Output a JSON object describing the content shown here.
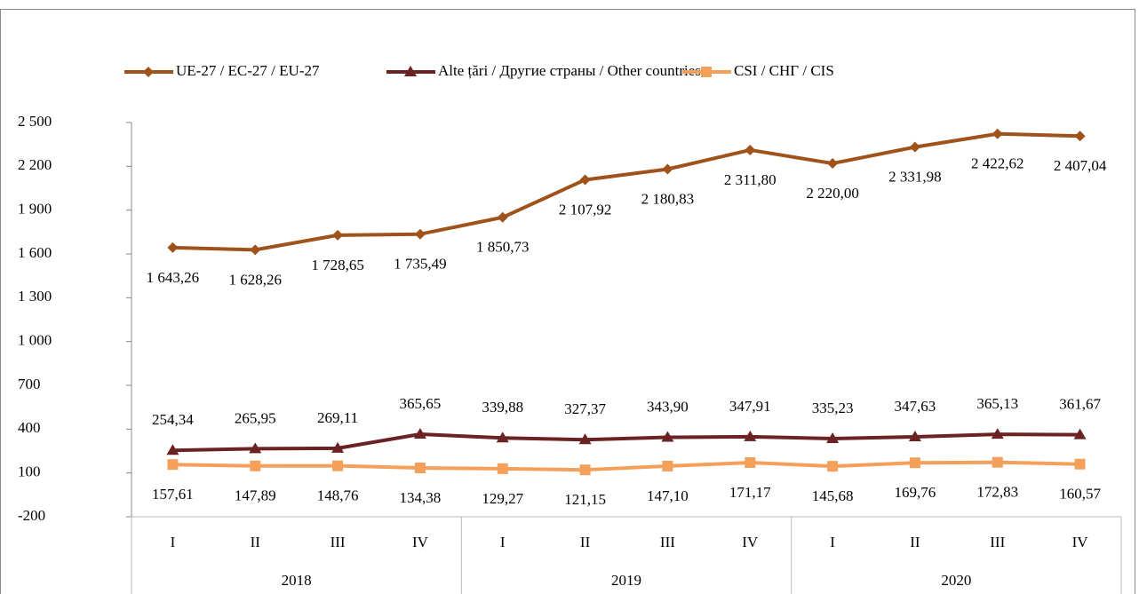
{
  "chart_data": {
    "type": "line",
    "categories": [
      "I",
      "II",
      "III",
      "IV",
      "I",
      "II",
      "III",
      "IV",
      "I",
      "II",
      "III",
      "IV"
    ],
    "groups": [
      "2018",
      "2019",
      "2020"
    ],
    "series": [
      {
        "name": "UE-27 / ЕС-27 / EU-27",
        "color": "#a0521b",
        "marker": "diamond",
        "label_position": "below",
        "values": [
          1643.26,
          1628.26,
          1728.65,
          1735.49,
          1850.73,
          2107.92,
          2180.83,
          2311.8,
          2220.0,
          2331.98,
          2422.62,
          2407.04
        ],
        "value_labels": [
          "1 643,26",
          "1 628,26",
          "1 728,65",
          "1 735,49",
          "1 850,73",
          "2 107,92",
          "2 180,83",
          "2 311,80",
          "2 220,00",
          "2 331,98",
          "2 422,62",
          "2 407,04"
        ]
      },
      {
        "name": "Alte țări / Другие страны / Other countries",
        "color": "#6b2222",
        "marker": "triangle",
        "label_position": "above",
        "values": [
          254.34,
          265.95,
          269.11,
          365.65,
          339.88,
          327.37,
          343.9,
          347.91,
          335.23,
          347.63,
          365.13,
          361.67
        ],
        "value_labels": [
          "254,34",
          "265,95",
          "269,11",
          "365,65",
          "339,88",
          "327,37",
          "343,90",
          "347,91",
          "335,23",
          "347,63",
          "365,13",
          "361,67"
        ]
      },
      {
        "name": "CSI / СНГ / CIS",
        "color": "#f5a05a",
        "marker": "square",
        "label_position": "below",
        "values": [
          157.61,
          147.89,
          148.76,
          134.38,
          129.27,
          121.15,
          147.1,
          171.17,
          145.68,
          169.76,
          172.83,
          160.57
        ],
        "value_labels": [
          "157,61",
          "147,89",
          "148,76",
          "134,38",
          "129,27",
          "121,15",
          "147,10",
          "171,17",
          "145,68",
          "169,76",
          "172,83",
          "160,57"
        ]
      }
    ],
    "ylim": [
      -200,
      2500
    ],
    "yticks": [
      -200,
      100,
      400,
      700,
      {
        "value": 1000,
        "label": "1 000"
      },
      {
        "value": 1300,
        "label": "1 300"
      },
      {
        "value": 1600,
        "label": "1 600"
      },
      {
        "value": 1900,
        "label": "1 900"
      },
      {
        "value": 2200,
        "label": "2 200"
      },
      {
        "value": 2500,
        "label": "2 500"
      }
    ],
    "legend": "top"
  }
}
